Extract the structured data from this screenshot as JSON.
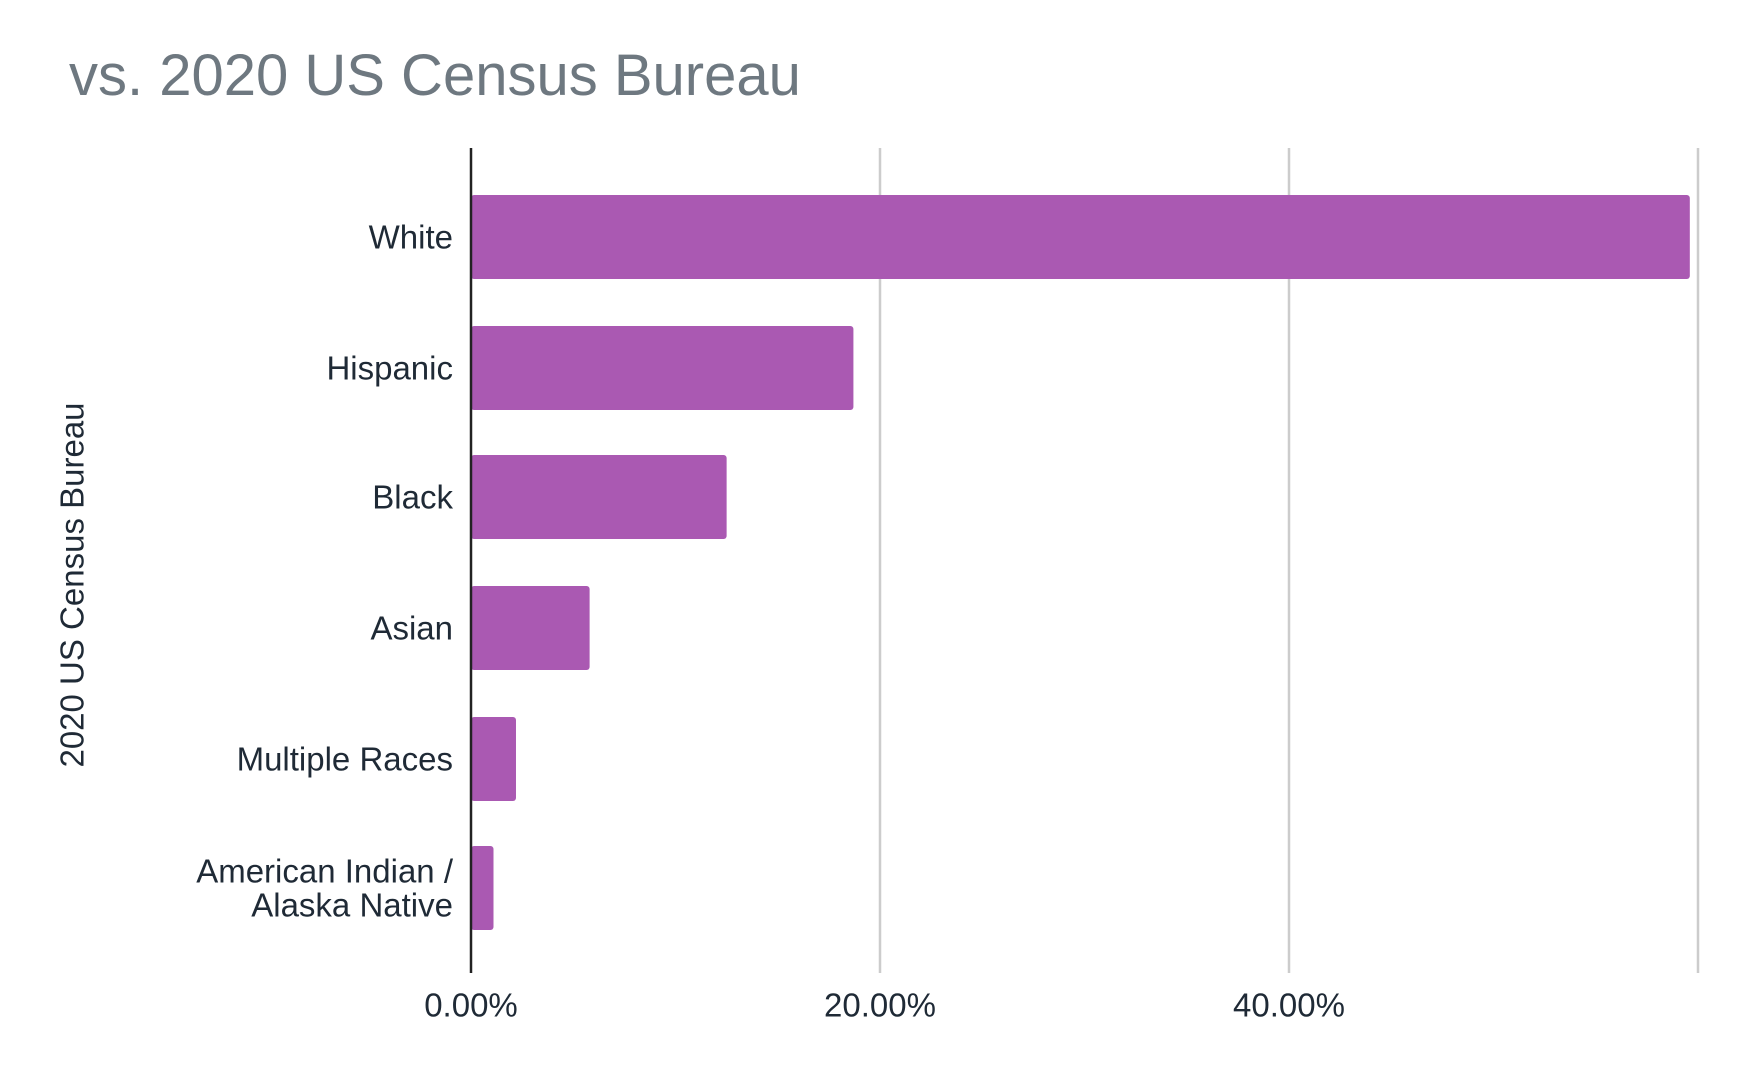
{
  "chart_data": {
    "type": "bar",
    "orientation": "horizontal",
    "title": "vs. 2020 US Census Bureau",
    "xlabel": "",
    "ylabel": "2020 US Census Bureau",
    "categories": [
      [
        "White"
      ],
      [
        "Hispanic"
      ],
      [
        "Black"
      ],
      [
        "Asian"
      ],
      [
        "Multiple Races"
      ],
      [
        "American Indian /",
        "Alaska Native"
      ]
    ],
    "values": [
      59.6,
      18.7,
      12.5,
      5.8,
      2.2,
      1.1
    ],
    "xlim": [
      0,
      60
    ],
    "xticks": [
      0,
      20,
      40
    ],
    "xtick_labels": [
      "0.00%",
      "20.00%",
      "40.00%"
    ],
    "grid": true,
    "legend": "none",
    "bar_color": "#aa59b2",
    "axis_color": "#222222",
    "grid_color": "#cccccc",
    "title_color": "#6e7880",
    "label_color": "#1f2a36"
  }
}
